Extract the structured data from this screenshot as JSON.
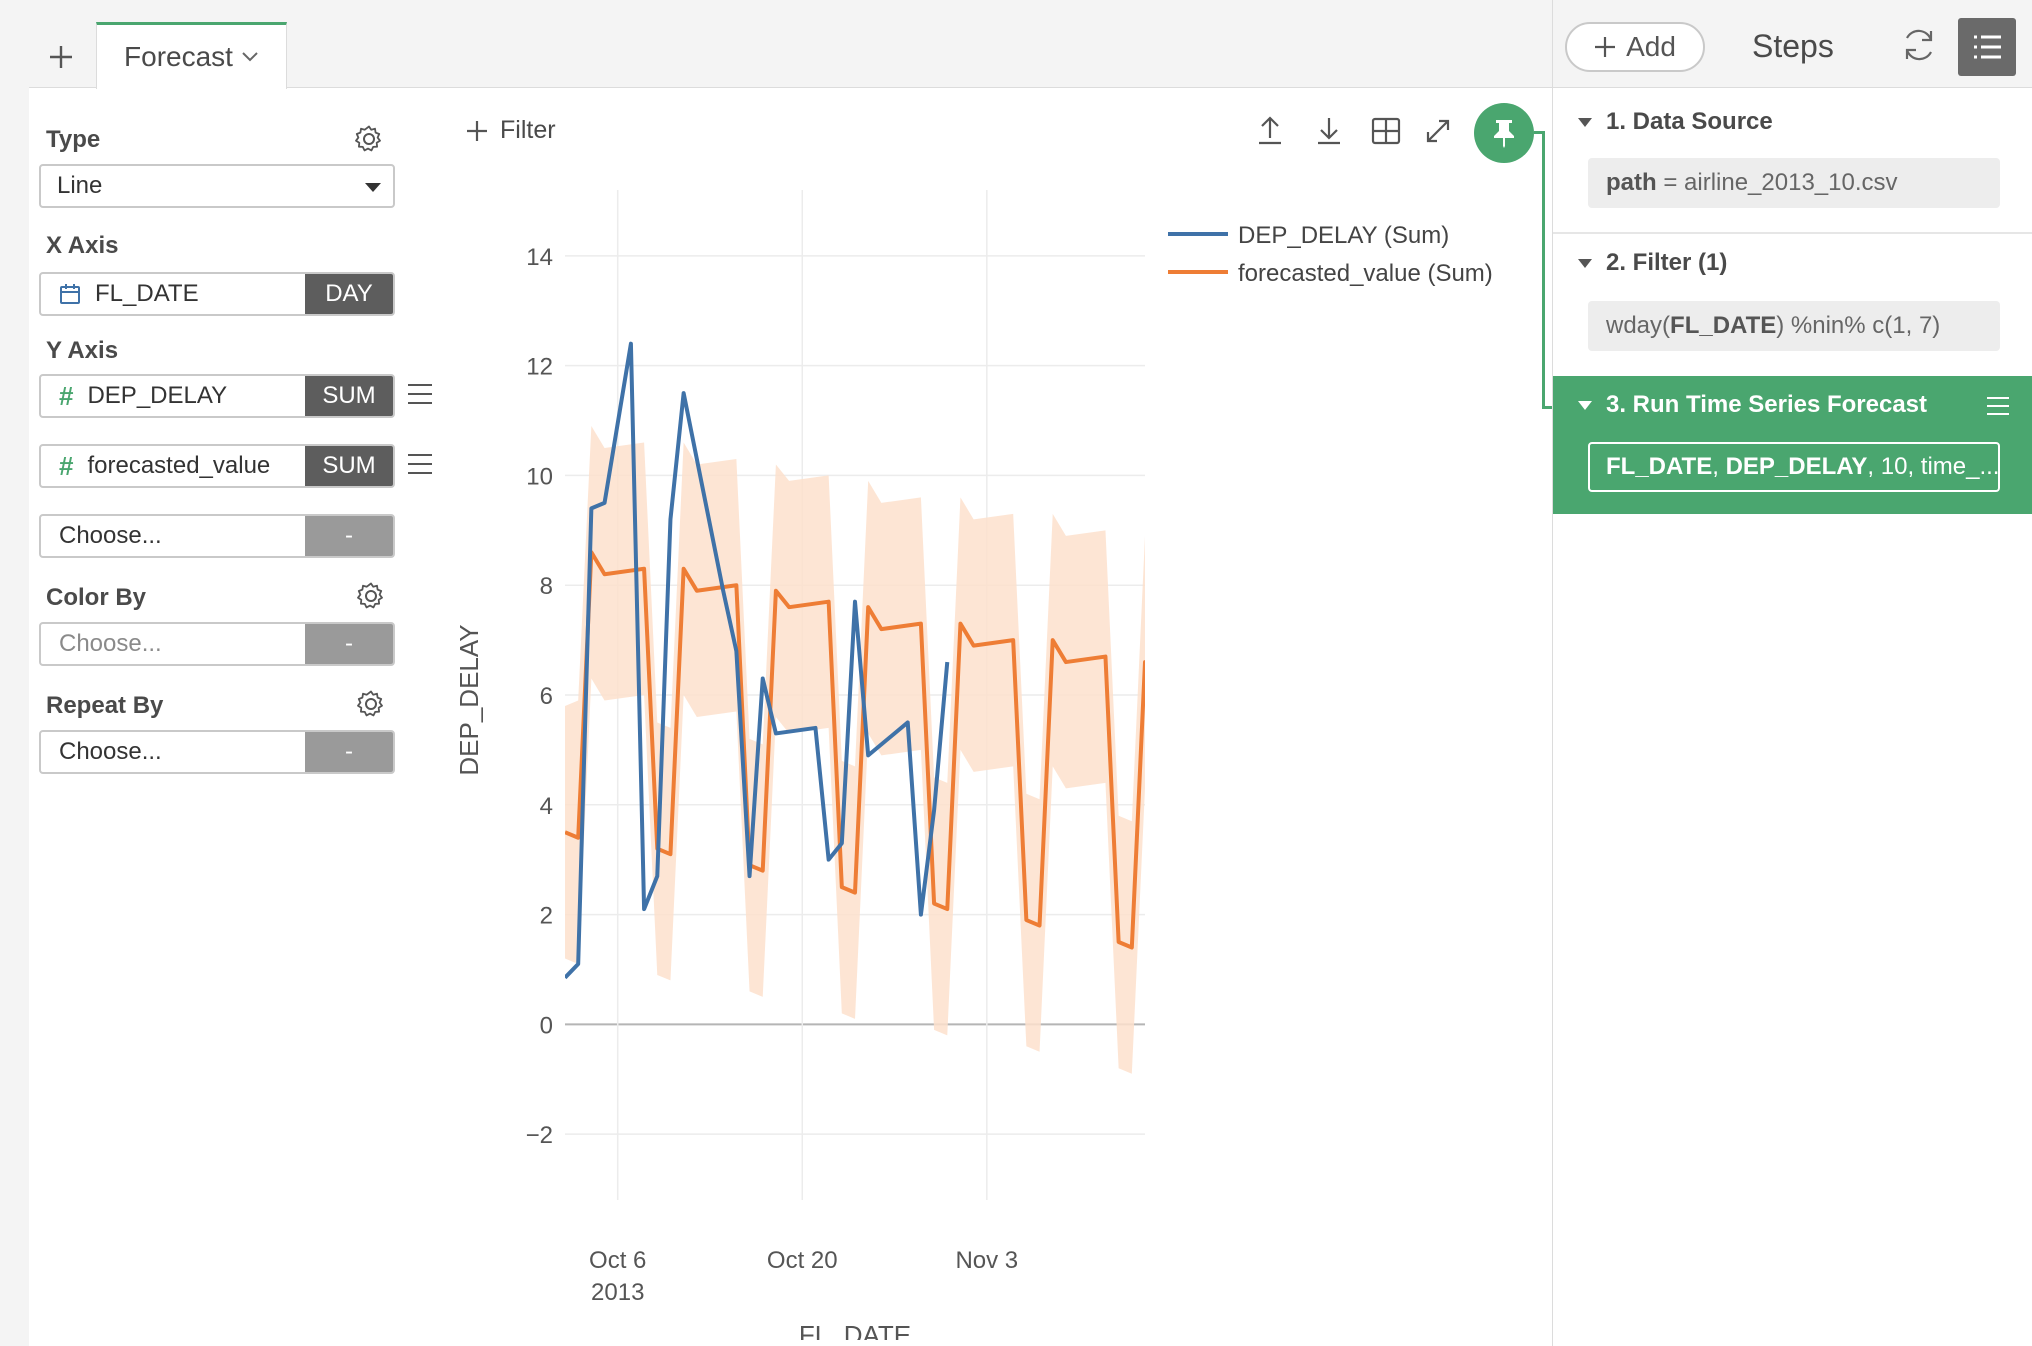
{
  "tabs": {
    "add_label": "+",
    "active_tab": "Forecast"
  },
  "config": {
    "type_label": "Type",
    "type_value": "Line",
    "x_axis_label": "X Axis",
    "x_field": "FL_DATE",
    "x_agg": "DAY",
    "y_axis_label": "Y Axis",
    "y_fields": [
      {
        "name": "DEP_DELAY",
        "agg": "SUM"
      },
      {
        "name": "forecasted_value",
        "agg": "SUM"
      }
    ],
    "y_choose": "Choose...",
    "y_choose_agg": "-",
    "color_by_label": "Color By",
    "color_by_value": "Choose...",
    "color_by_agg": "-",
    "repeat_by_label": "Repeat By",
    "repeat_by_value": "Choose...",
    "repeat_by_agg": "-"
  },
  "toolbar": {
    "filter_label": "Filter"
  },
  "colors": {
    "accent": "#4aa66f",
    "series_actual": "#3f72a8",
    "series_forecast": "#ee7d35",
    "band": "#fde0cc"
  },
  "chart_data": {
    "type": "line",
    "xlabel": "FL_DATE",
    "ylabel": "DEP_DELAY",
    "ylim": [
      -3.2,
      15.2
    ],
    "yticks": [
      -2,
      0,
      2,
      4,
      6,
      8,
      10,
      12,
      14
    ],
    "yticklabels": [
      "−2",
      "0",
      "2",
      "4",
      "6",
      "8",
      "10",
      "12",
      "14"
    ],
    "xlim": [
      "2013-10-02",
      "2013-11-15"
    ],
    "xticks": [
      {
        "date": "2013-10-06",
        "label": "Oct 6",
        "sublabel": "2013"
      },
      {
        "date": "2013-10-20",
        "label": "Oct 20",
        "sublabel": ""
      },
      {
        "date": "2013-11-03",
        "label": "Nov 3",
        "sublabel": ""
      }
    ],
    "grid": true,
    "legend_position": "top-right",
    "series": [
      {
        "name": "DEP_DELAY (Sum)",
        "color": "#3f72a8",
        "points": [
          [
            "2013-10-02",
            0.85
          ],
          [
            "2013-10-03",
            1.1
          ],
          [
            "2013-10-04",
            9.4
          ],
          [
            "2013-10-05",
            9.5
          ],
          [
            "2013-10-07",
            12.4
          ],
          [
            "2013-10-08",
            2.1
          ],
          [
            "2013-10-09",
            2.7
          ],
          [
            "2013-10-10",
            9.2
          ],
          [
            "2013-10-11",
            11.5
          ],
          [
            "2013-10-14",
            7.9
          ],
          [
            "2013-10-15",
            6.8
          ],
          [
            "2013-10-16",
            2.7
          ],
          [
            "2013-10-17",
            6.3
          ],
          [
            "2013-10-18",
            5.3
          ],
          [
            "2013-10-21",
            5.4
          ],
          [
            "2013-10-22",
            3.0
          ],
          [
            "2013-10-23",
            3.3
          ],
          [
            "2013-10-24",
            7.7
          ],
          [
            "2013-10-25",
            4.9
          ],
          [
            "2013-10-28",
            5.5
          ],
          [
            "2013-10-29",
            2.0
          ],
          [
            "2013-10-30",
            3.9
          ],
          [
            "2013-10-31",
            6.6
          ]
        ]
      },
      {
        "name": "forecasted_value (Sum)",
        "color": "#ee7d35",
        "points": [
          [
            "2013-10-02",
            3.5
          ],
          [
            "2013-10-03",
            3.4
          ],
          [
            "2013-10-04",
            8.6
          ],
          [
            "2013-10-05",
            8.2
          ],
          [
            "2013-10-08",
            8.3
          ],
          [
            "2013-10-09",
            3.2
          ],
          [
            "2013-10-10",
            3.1
          ],
          [
            "2013-10-11",
            8.3
          ],
          [
            "2013-10-12",
            7.9
          ],
          [
            "2013-10-15",
            8.0
          ],
          [
            "2013-10-16",
            2.9
          ],
          [
            "2013-10-17",
            2.8
          ],
          [
            "2013-10-18",
            7.9
          ],
          [
            "2013-10-19",
            7.6
          ],
          [
            "2013-10-22",
            7.7
          ],
          [
            "2013-10-23",
            2.5
          ],
          [
            "2013-10-24",
            2.4
          ],
          [
            "2013-10-25",
            7.6
          ],
          [
            "2013-10-26",
            7.2
          ],
          [
            "2013-10-29",
            7.3
          ],
          [
            "2013-10-30",
            2.2
          ],
          [
            "2013-10-31",
            2.1
          ],
          [
            "2013-11-01",
            7.3
          ],
          [
            "2013-11-02",
            6.9
          ],
          [
            "2013-11-05",
            7.0
          ],
          [
            "2013-11-06",
            1.9
          ],
          [
            "2013-11-07",
            1.8
          ],
          [
            "2013-11-08",
            7.0
          ],
          [
            "2013-11-09",
            6.6
          ],
          [
            "2013-11-12",
            6.7
          ],
          [
            "2013-11-13",
            1.5
          ],
          [
            "2013-11-14",
            1.4
          ],
          [
            "2013-11-15",
            6.6
          ],
          [
            "2013-11-16",
            6.2
          ]
        ]
      }
    ],
    "band": {
      "name": "forecast interval",
      "upper": [
        [
          "2013-10-02",
          5.8
        ],
        [
          "2013-10-03",
          5.9
        ],
        [
          "2013-10-04",
          10.9
        ],
        [
          "2013-10-05",
          10.5
        ],
        [
          "2013-10-08",
          10.6
        ],
        [
          "2013-10-09",
          5.5
        ],
        [
          "2013-10-10",
          5.4
        ],
        [
          "2013-10-11",
          10.6
        ],
        [
          "2013-10-12",
          10.2
        ],
        [
          "2013-10-15",
          10.3
        ],
        [
          "2013-10-16",
          5.2
        ],
        [
          "2013-10-17",
          5.1
        ],
        [
          "2013-10-18",
          10.2
        ],
        [
          "2013-10-19",
          9.9
        ],
        [
          "2013-10-22",
          10.0
        ],
        [
          "2013-10-23",
          4.8
        ],
        [
          "2013-10-24",
          4.7
        ],
        [
          "2013-10-25",
          9.9
        ],
        [
          "2013-10-26",
          9.5
        ],
        [
          "2013-10-29",
          9.6
        ],
        [
          "2013-10-30",
          4.5
        ],
        [
          "2013-10-31",
          4.4
        ],
        [
          "2013-11-01",
          9.6
        ],
        [
          "2013-11-02",
          9.2
        ],
        [
          "2013-11-05",
          9.3
        ],
        [
          "2013-11-06",
          4.2
        ],
        [
          "2013-11-07",
          4.1
        ],
        [
          "2013-11-08",
          9.3
        ],
        [
          "2013-11-09",
          8.9
        ],
        [
          "2013-11-12",
          9.0
        ],
        [
          "2013-11-13",
          3.8
        ],
        [
          "2013-11-14",
          3.7
        ],
        [
          "2013-11-15",
          8.9
        ],
        [
          "2013-11-16",
          8.5
        ]
      ],
      "lower": [
        [
          "2013-10-02",
          1.2
        ],
        [
          "2013-10-03",
          1.1
        ],
        [
          "2013-10-04",
          6.3
        ],
        [
          "2013-10-05",
          5.9
        ],
        [
          "2013-10-08",
          6.0
        ],
        [
          "2013-10-09",
          0.9
        ],
        [
          "2013-10-10",
          0.8
        ],
        [
          "2013-10-11",
          6.0
        ],
        [
          "2013-10-12",
          5.6
        ],
        [
          "2013-10-15",
          5.7
        ],
        [
          "2013-10-16",
          0.6
        ],
        [
          "2013-10-17",
          0.5
        ],
        [
          "2013-10-18",
          5.6
        ],
        [
          "2013-10-19",
          5.3
        ],
        [
          "2013-10-22",
          5.4
        ],
        [
          "2013-10-23",
          0.2
        ],
        [
          "2013-10-24",
          0.1
        ],
        [
          "2013-10-25",
          5.3
        ],
        [
          "2013-10-26",
          4.9
        ],
        [
          "2013-10-29",
          5.0
        ],
        [
          "2013-10-30",
          -0.1
        ],
        [
          "2013-10-31",
          -0.2
        ],
        [
          "2013-11-01",
          5.0
        ],
        [
          "2013-11-02",
          4.6
        ],
        [
          "2013-11-05",
          4.7
        ],
        [
          "2013-11-06",
          -0.4
        ],
        [
          "2013-11-07",
          -0.5
        ],
        [
          "2013-11-08",
          4.7
        ],
        [
          "2013-11-09",
          4.3
        ],
        [
          "2013-11-12",
          4.4
        ],
        [
          "2013-11-13",
          -0.8
        ],
        [
          "2013-11-14",
          -0.9
        ],
        [
          "2013-11-15",
          4.3
        ],
        [
          "2013-11-16",
          3.9
        ]
      ]
    }
  },
  "steps": {
    "add_label": "Add",
    "title": "Steps",
    "items": [
      {
        "title": "1. Data Source",
        "body_key": "path",
        "body_rest": " = airline_2013_10.csv"
      },
      {
        "title": "2. Filter (1)",
        "body_pre": "wday(",
        "body_key": "FL_DATE",
        "body_rest": ") %nin% c(1, 7)"
      },
      {
        "title": "3. Run Time Series Forecast",
        "body_key1": "FL_DATE",
        "body_sep": ", ",
        "body_key2": "DEP_DELAY",
        "body_rest": ", 10, time_..."
      }
    ]
  }
}
